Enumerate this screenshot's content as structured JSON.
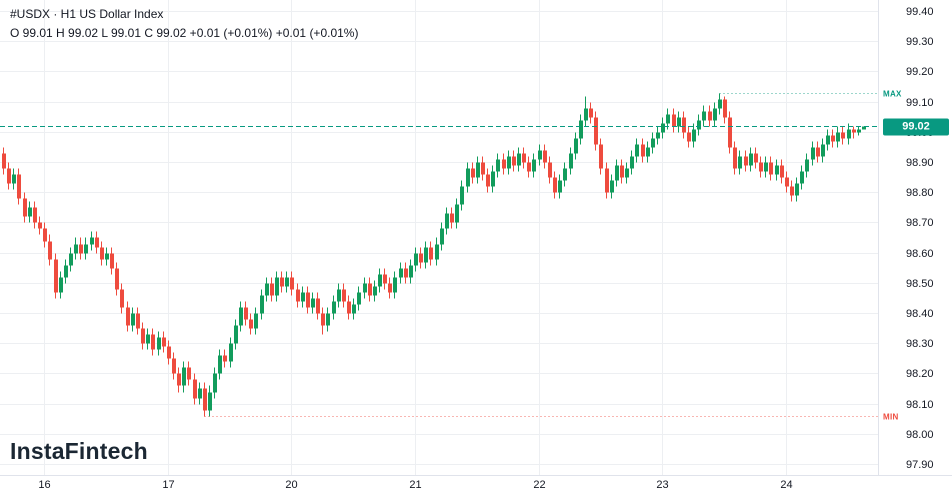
{
  "header": {
    "symbol_line": "#USDX · H1 US Dollar Index",
    "ohlc_line": "O 99.01 H 99.02 L 99.01 C 99.02 +0.01 (+0.01%) +0.01 (+0.01%)"
  },
  "watermark": "InstaFintech",
  "markers": {
    "max_label": "MAX",
    "min_label": "MIN"
  },
  "price_axis": {
    "current_price": "99.02"
  },
  "colors": {
    "up": "#129c5c",
    "down": "#ee4b3e",
    "grid": "#edeff2",
    "price_line": "#089981",
    "badge_bg": "#089981",
    "max_text": "#089981",
    "min_text": "#ee4b3e",
    "axis_text": "#131722"
  },
  "chart_data": {
    "type": "candlestick",
    "symbol": "#USDX",
    "timeframe": "H1",
    "title": "US Dollar Index",
    "y_tick_labels": [
      "99.40",
      "99.30",
      "99.20",
      "99.10",
      "99.00",
      "98.90",
      "98.80",
      "98.70",
      "98.60",
      "98.50",
      "98.40",
      "98.30",
      "98.20",
      "98.10",
      "98.00",
      "97.90"
    ],
    "x_ticks": {
      "labels": [
        "16",
        "17",
        "20",
        "21",
        "22",
        "23",
        "24"
      ],
      "indices": [
        8,
        32,
        56,
        80,
        104,
        128,
        152
      ]
    },
    "ylim": [
      97.86,
      99.44
    ],
    "last_price": 99.02,
    "last_candle": {
      "open": 99.01,
      "high": 99.02,
      "low": 99.01,
      "close": 99.02,
      "change": "+0.01",
      "change_percent": "+0.01%"
    },
    "period_high": 99.13,
    "period_low": 98.06,
    "candles_ohlc": [
      [
        98.93,
        98.95,
        98.86,
        98.88
      ],
      [
        98.88,
        98.9,
        98.81,
        98.83
      ],
      [
        98.83,
        98.88,
        98.81,
        98.86
      ],
      [
        98.86,
        98.88,
        98.76,
        98.78
      ],
      [
        98.78,
        98.8,
        98.7,
        98.72
      ],
      [
        98.72,
        98.77,
        98.7,
        98.75
      ],
      [
        98.75,
        98.77,
        98.68,
        98.7
      ],
      [
        98.7,
        98.72,
        98.66,
        98.68
      ],
      [
        98.68,
        98.7,
        98.62,
        98.64
      ],
      [
        98.64,
        98.66,
        98.56,
        98.58
      ],
      [
        98.58,
        98.6,
        98.45,
        98.47
      ],
      [
        98.47,
        98.54,
        98.45,
        98.52
      ],
      [
        98.52,
        98.58,
        98.5,
        98.56
      ],
      [
        98.56,
        98.62,
        98.54,
        98.6
      ],
      [
        98.6,
        98.65,
        98.58,
        98.63
      ],
      [
        98.63,
        98.65,
        98.58,
        98.6
      ],
      [
        98.6,
        98.65,
        98.58,
        98.63
      ],
      [
        98.63,
        98.67,
        98.61,
        98.65
      ],
      [
        98.65,
        98.67,
        98.6,
        98.62
      ],
      [
        98.62,
        98.64,
        98.56,
        98.58
      ],
      [
        98.58,
        98.62,
        98.56,
        98.6
      ],
      [
        98.6,
        98.62,
        98.53,
        98.55
      ],
      [
        98.55,
        98.57,
        98.46,
        98.48
      ],
      [
        98.48,
        98.5,
        98.4,
        98.42
      ],
      [
        98.42,
        98.44,
        98.34,
        98.36
      ],
      [
        98.36,
        98.42,
        98.34,
        98.4
      ],
      [
        98.4,
        98.42,
        98.33,
        98.35
      ],
      [
        98.35,
        98.37,
        98.28,
        98.3
      ],
      [
        98.3,
        98.35,
        98.28,
        98.33
      ],
      [
        98.33,
        98.35,
        98.26,
        98.28
      ],
      [
        98.28,
        98.34,
        98.26,
        98.32
      ],
      [
        98.32,
        98.34,
        98.27,
        98.29
      ],
      [
        98.29,
        98.31,
        98.23,
        98.25
      ],
      [
        98.25,
        98.27,
        98.18,
        98.2
      ],
      [
        98.2,
        98.22,
        98.14,
        98.16
      ],
      [
        98.16,
        98.24,
        98.14,
        98.22
      ],
      [
        98.22,
        98.24,
        98.16,
        98.18
      ],
      [
        98.18,
        98.2,
        98.1,
        98.12
      ],
      [
        98.12,
        98.17,
        98.1,
        98.15
      ],
      [
        98.15,
        98.17,
        98.06,
        98.08
      ],
      [
        98.08,
        98.16,
        98.06,
        98.14
      ],
      [
        98.14,
        98.22,
        98.12,
        98.2
      ],
      [
        98.2,
        98.28,
        98.18,
        98.26
      ],
      [
        98.26,
        98.28,
        98.22,
        98.24
      ],
      [
        98.24,
        98.32,
        98.22,
        98.3
      ],
      [
        98.3,
        98.38,
        98.28,
        98.36
      ],
      [
        98.36,
        98.44,
        98.34,
        98.42
      ],
      [
        98.42,
        98.44,
        98.36,
        98.38
      ],
      [
        98.38,
        98.4,
        98.33,
        98.35
      ],
      [
        98.35,
        98.42,
        98.33,
        98.4
      ],
      [
        98.4,
        98.48,
        98.38,
        98.46
      ],
      [
        98.46,
        98.52,
        98.44,
        98.5
      ],
      [
        98.5,
        98.52,
        98.44,
        98.46
      ],
      [
        98.46,
        98.54,
        98.44,
        98.52
      ],
      [
        98.52,
        98.54,
        98.47,
        98.49
      ],
      [
        98.49,
        98.54,
        98.47,
        98.52
      ],
      [
        98.52,
        98.54,
        98.46,
        98.48
      ],
      [
        98.48,
        98.5,
        98.42,
        98.44
      ],
      [
        98.44,
        98.49,
        98.42,
        98.47
      ],
      [
        98.47,
        98.49,
        98.4,
        98.42
      ],
      [
        98.42,
        98.47,
        98.4,
        98.45
      ],
      [
        98.45,
        98.47,
        98.38,
        98.4
      ],
      [
        98.4,
        98.42,
        98.33,
        98.36
      ],
      [
        98.36,
        98.42,
        98.34,
        98.4
      ],
      [
        98.4,
        98.46,
        98.38,
        98.44
      ],
      [
        98.44,
        98.5,
        98.42,
        98.48
      ],
      [
        98.48,
        98.5,
        98.42,
        98.44
      ],
      [
        98.44,
        98.46,
        98.38,
        98.4
      ],
      [
        98.4,
        98.45,
        98.38,
        98.43
      ],
      [
        98.43,
        98.49,
        98.41,
        98.47
      ],
      [
        98.47,
        98.52,
        98.45,
        98.5
      ],
      [
        98.5,
        98.52,
        98.44,
        98.46
      ],
      [
        98.46,
        98.51,
        98.44,
        98.49
      ],
      [
        98.49,
        98.55,
        98.47,
        98.53
      ],
      [
        98.53,
        98.55,
        98.48,
        98.5
      ],
      [
        98.5,
        98.52,
        98.45,
        98.47
      ],
      [
        98.47,
        98.54,
        98.45,
        98.52
      ],
      [
        98.52,
        98.57,
        98.5,
        98.55
      ],
      [
        98.55,
        98.57,
        98.5,
        98.52
      ],
      [
        98.52,
        98.58,
        98.5,
        98.56
      ],
      [
        98.56,
        98.62,
        98.54,
        98.6
      ],
      [
        98.6,
        98.62,
        98.55,
        98.57
      ],
      [
        98.57,
        98.64,
        98.55,
        98.62
      ],
      [
        98.62,
        98.64,
        98.56,
        98.58
      ],
      [
        98.58,
        98.65,
        98.56,
        98.63
      ],
      [
        98.63,
        98.7,
        98.61,
        98.68
      ],
      [
        98.68,
        98.75,
        98.66,
        98.73
      ],
      [
        98.73,
        98.75,
        98.68,
        98.7
      ],
      [
        98.7,
        98.78,
        98.68,
        98.76
      ],
      [
        98.76,
        98.84,
        98.74,
        98.82
      ],
      [
        98.82,
        98.9,
        98.8,
        98.88
      ],
      [
        98.88,
        98.9,
        98.83,
        98.85
      ],
      [
        98.85,
        98.92,
        98.83,
        98.9
      ],
      [
        98.9,
        98.92,
        98.84,
        98.86
      ],
      [
        98.86,
        98.88,
        98.8,
        98.82
      ],
      [
        98.82,
        98.89,
        98.8,
        98.87
      ],
      [
        98.87,
        98.93,
        98.85,
        98.91
      ],
      [
        98.91,
        98.93,
        98.86,
        98.88
      ],
      [
        98.88,
        98.94,
        98.86,
        98.92
      ],
      [
        98.92,
        98.94,
        98.87,
        98.89
      ],
      [
        98.89,
        98.95,
        98.87,
        98.93
      ],
      [
        98.93,
        98.95,
        98.88,
        98.9
      ],
      [
        98.9,
        98.92,
        98.85,
        98.87
      ],
      [
        98.87,
        98.93,
        98.85,
        98.91
      ],
      [
        98.91,
        98.96,
        98.89,
        98.94
      ],
      [
        98.94,
        98.96,
        98.88,
        98.9
      ],
      [
        98.9,
        98.92,
        98.83,
        98.85
      ],
      [
        98.85,
        98.87,
        98.78,
        98.8
      ],
      [
        98.8,
        98.86,
        98.78,
        98.84
      ],
      [
        98.84,
        98.9,
        98.82,
        98.88
      ],
      [
        98.88,
        98.95,
        98.86,
        98.93
      ],
      [
        98.93,
        99.0,
        98.91,
        98.98
      ],
      [
        98.98,
        99.06,
        98.96,
        99.04
      ],
      [
        99.04,
        99.12,
        99.02,
        99.08
      ],
      [
        99.08,
        99.1,
        99.03,
        99.05
      ],
      [
        99.05,
        99.07,
        98.94,
        98.96
      ],
      [
        98.96,
        98.98,
        98.86,
        98.88
      ],
      [
        98.88,
        98.9,
        98.78,
        98.8
      ],
      [
        98.8,
        98.86,
        98.78,
        98.84
      ],
      [
        98.84,
        98.91,
        98.82,
        98.89
      ],
      [
        98.89,
        98.91,
        98.83,
        98.85
      ],
      [
        98.85,
        98.9,
        98.83,
        98.88
      ],
      [
        98.88,
        98.94,
        98.86,
        98.92
      ],
      [
        98.92,
        98.98,
        98.9,
        98.96
      ],
      [
        98.96,
        98.98,
        98.9,
        98.92
      ],
      [
        98.92,
        98.97,
        98.9,
        98.95
      ],
      [
        98.95,
        99.0,
        98.93,
        98.98
      ],
      [
        98.98,
        99.02,
        98.96,
        99.0
      ],
      [
        99.0,
        99.05,
        98.98,
        99.03
      ],
      [
        99.03,
        99.08,
        99.01,
        99.06
      ],
      [
        99.06,
        99.08,
        99.0,
        99.02
      ],
      [
        99.02,
        99.07,
        99.0,
        99.05
      ],
      [
        99.05,
        99.07,
        98.98,
        99.0
      ],
      [
        99.0,
        99.02,
        98.95,
        98.97
      ],
      [
        98.97,
        99.03,
        98.95,
        99.01
      ],
      [
        99.01,
        99.06,
        98.99,
        99.04
      ],
      [
        99.04,
        99.09,
        99.02,
        99.07
      ],
      [
        99.07,
        99.09,
        99.02,
        99.04
      ],
      [
        99.04,
        99.1,
        99.02,
        99.08
      ],
      [
        99.08,
        99.13,
        99.06,
        99.11
      ],
      [
        99.11,
        99.12,
        99.03,
        99.05
      ],
      [
        99.05,
        99.07,
        98.93,
        98.95
      ],
      [
        98.95,
        98.97,
        98.86,
        98.88
      ],
      [
        98.88,
        98.94,
        98.86,
        98.92
      ],
      [
        98.92,
        98.94,
        98.87,
        98.89
      ],
      [
        98.89,
        98.95,
        98.87,
        98.93
      ],
      [
        98.93,
        98.95,
        98.88,
        98.9
      ],
      [
        98.9,
        98.92,
        98.85,
        98.87
      ],
      [
        98.87,
        98.92,
        98.85,
        98.9
      ],
      [
        98.9,
        98.92,
        98.84,
        98.86
      ],
      [
        98.86,
        98.91,
        98.84,
        98.89
      ],
      [
        98.89,
        98.91,
        98.83,
        98.85
      ],
      [
        98.85,
        98.87,
        98.8,
        98.82
      ],
      [
        98.82,
        98.84,
        98.77,
        98.79
      ],
      [
        98.79,
        98.85,
        98.77,
        98.83
      ],
      [
        98.83,
        98.89,
        98.81,
        98.87
      ],
      [
        98.87,
        98.93,
        98.85,
        98.91
      ],
      [
        98.91,
        98.97,
        98.89,
        98.95
      ],
      [
        98.95,
        98.97,
        98.9,
        98.92
      ],
      [
        98.92,
        98.98,
        98.9,
        98.96
      ],
      [
        98.96,
        99.01,
        98.94,
        98.99
      ],
      [
        98.99,
        99.01,
        98.95,
        98.97
      ],
      [
        98.97,
        99.02,
        98.95,
        99.0
      ],
      [
        99.0,
        99.02,
        98.96,
        98.98
      ],
      [
        98.98,
        99.03,
        98.96,
        99.01
      ],
      [
        99.01,
        99.02,
        98.98,
        99.0
      ],
      [
        99.0,
        99.02,
        98.99,
        99.01
      ],
      [
        99.01,
        99.02,
        99.01,
        99.02
      ]
    ]
  }
}
